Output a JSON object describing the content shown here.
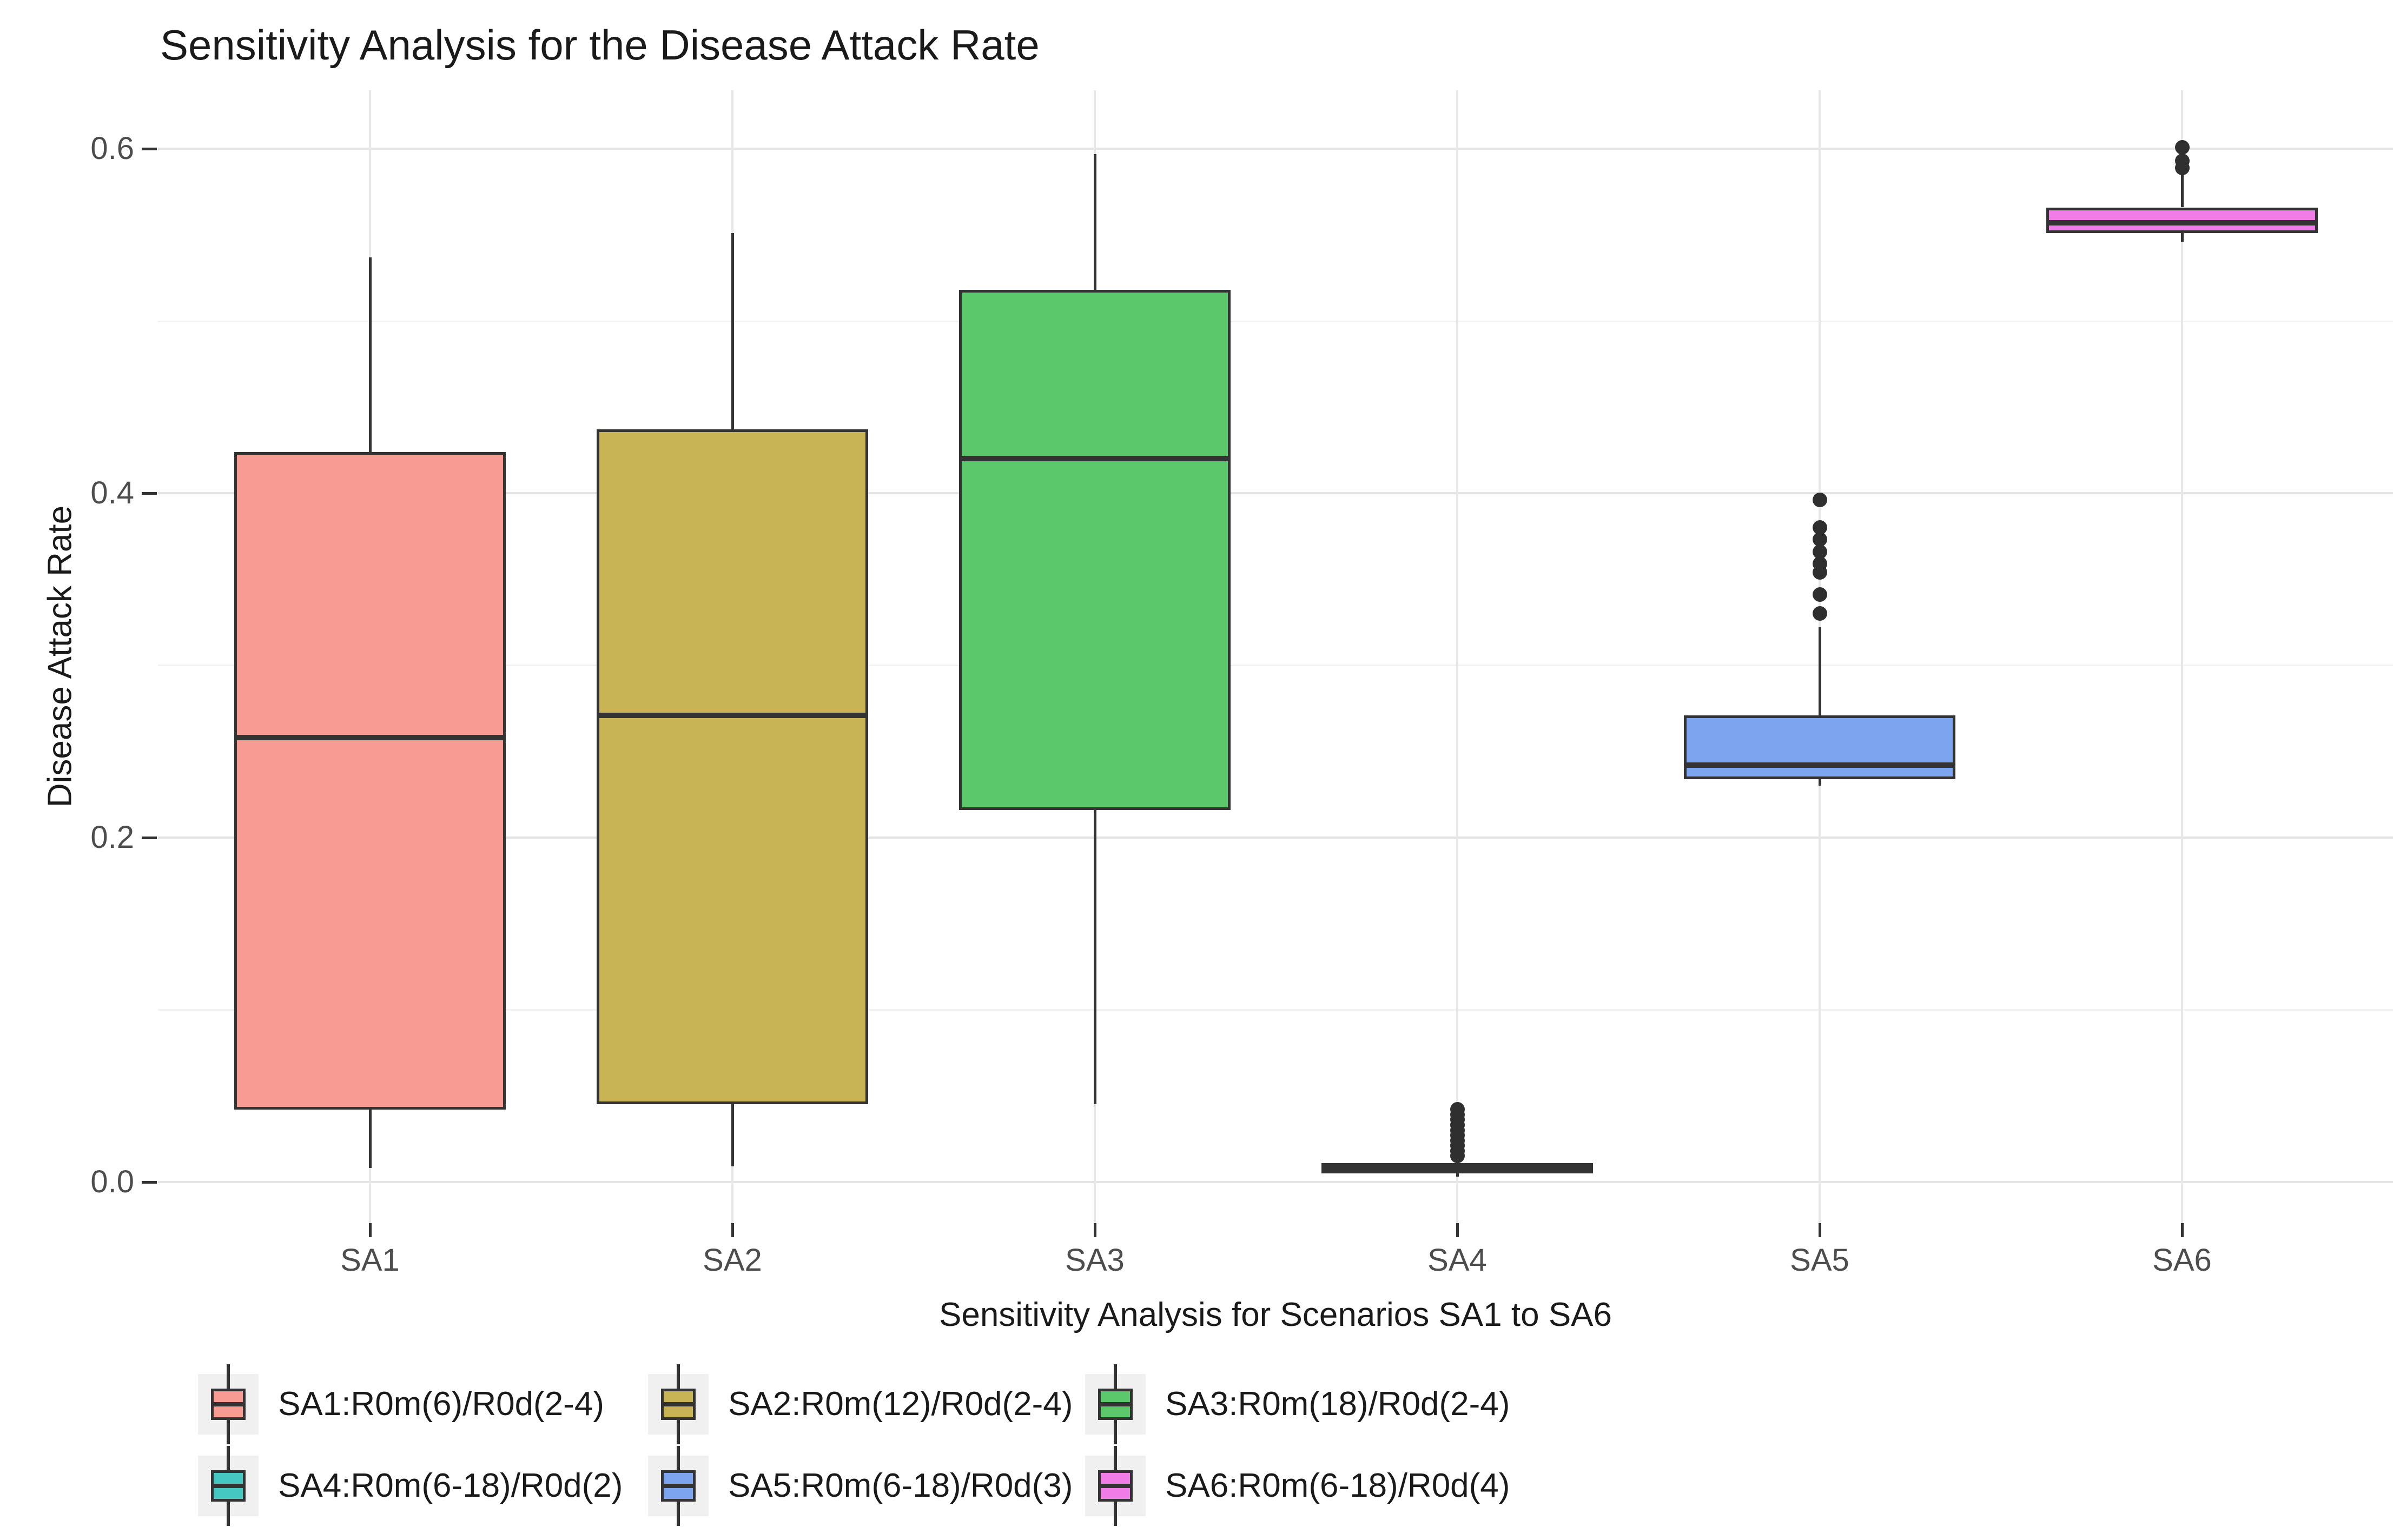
{
  "chart_data": {
    "type": "boxplot",
    "title": "Sensitivity Analysis for the Disease Attack Rate",
    "xlabel": "Sensitivity Analysis for Scenarios SA1 to SA6",
    "ylabel": "Disease Attack Rate",
    "ylim": [
      0.0,
      0.6
    ],
    "y_render_range": [
      -0.024,
      0.634
    ],
    "y_major_ticks": [
      0.0,
      0.2,
      0.4,
      0.6
    ],
    "y_tick_labels": [
      "0.0",
      "0.2",
      "0.4",
      "0.6"
    ],
    "y_minor_gridlines": [
      0.1,
      0.3,
      0.5
    ],
    "grid": true,
    "legend_position": "bottom",
    "categories": [
      "SA1",
      "SA2",
      "SA3",
      "SA4",
      "SA5",
      "SA6"
    ],
    "series": [
      {
        "name": "SA1",
        "legend_label": "SA1:R0m(6)/R0d(2-4)",
        "color": "#F89B92",
        "whislo": 0.008,
        "q1": 0.042,
        "med": 0.258,
        "q3": 0.424,
        "whishi": 0.537,
        "outliers": []
      },
      {
        "name": "SA2",
        "legend_label": "SA2:R0m(12)/R0d(2-4)",
        "color": "#C9B455",
        "whislo": 0.009,
        "q1": 0.045,
        "med": 0.271,
        "q3": 0.437,
        "whishi": 0.551,
        "outliers": []
      },
      {
        "name": "SA3",
        "legend_label": "SA3:R0m(18)/R0d(2-4)",
        "color": "#5AC86B",
        "whislo": 0.045,
        "q1": 0.216,
        "med": 0.42,
        "q3": 0.518,
        "whishi": 0.597,
        "outliers": []
      },
      {
        "name": "SA4",
        "legend_label": "SA4:R0m(6-18)/R0d(2)",
        "color": "#45C8C2",
        "whislo": 0.003,
        "q1": 0.005,
        "med": 0.008,
        "q3": 0.011,
        "whishi": 0.013,
        "outliers": [
          0.015,
          0.018,
          0.021,
          0.024,
          0.027,
          0.03,
          0.033,
          0.036,
          0.039,
          0.042
        ]
      },
      {
        "name": "SA5",
        "legend_label": "SA5:R0m(6-18)/R0d(3)",
        "color": "#7DA5EF",
        "whislo": 0.23,
        "q1": 0.234,
        "med": 0.242,
        "q3": 0.271,
        "whishi": 0.322,
        "outliers": [
          0.33,
          0.341,
          0.354,
          0.359,
          0.366,
          0.373,
          0.38,
          0.396
        ]
      },
      {
        "name": "SA6",
        "legend_label": "SA6:R0m(6-18)/R0d(4)",
        "color": "#F07CE8",
        "whislo": 0.546,
        "q1": 0.551,
        "med": 0.557,
        "q3": 0.566,
        "whishi": 0.585,
        "outliers": [
          0.589,
          0.593,
          0.601
        ]
      }
    ],
    "style": {
      "stroke": "#333333",
      "grid_major": "#E4E4E4",
      "grid_minor": "#F2F2F2",
      "grid_vertical": "#E7E7E7",
      "outlier": "#2F2F2F",
      "legend_key_bg": "#F0F0F0",
      "tick_text": "#4D4D4D",
      "title_text": "#1A1A1A"
    }
  }
}
